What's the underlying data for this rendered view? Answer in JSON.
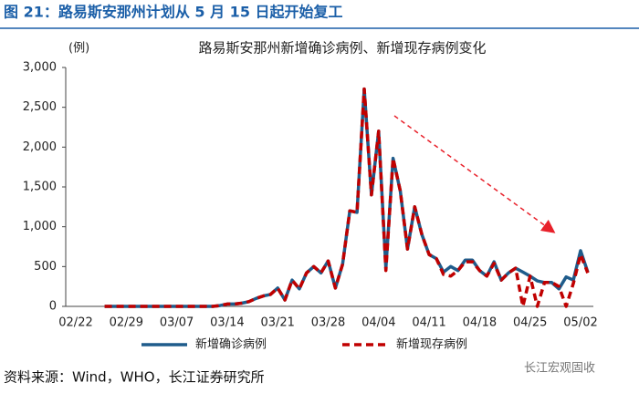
{
  "chart_data": {
    "type": "line",
    "figure_title": "图 21：路易斯安那州计划从 5 月 15 日起开始复工",
    "title": "路易斯安那州新增确诊病例、新增现存病例变化",
    "y_unit": "(例)",
    "source": "资料来源：Wind，WHO，长江证券研究所",
    "watermark": "长江宏观固收",
    "categories": [
      "02/22",
      null,
      null,
      null,
      null,
      null,
      null,
      "02/29",
      null,
      null,
      null,
      null,
      null,
      null,
      "03/07",
      null,
      null,
      null,
      null,
      null,
      null,
      "03/14",
      null,
      null,
      null,
      null,
      null,
      null,
      "03/21",
      null,
      null,
      null,
      null,
      null,
      null,
      "03/28",
      null,
      null,
      null,
      null,
      null,
      null,
      "04/04",
      null,
      null,
      null,
      null,
      null,
      null,
      "04/11",
      null,
      null,
      null,
      null,
      null,
      null,
      "04/18",
      null,
      null,
      null,
      null,
      null,
      null,
      "04/25",
      null,
      null,
      null,
      null,
      null,
      null,
      "05/02",
      null
    ],
    "series": [
      {
        "name": "新增确诊病例",
        "color": "#1f5c8b",
        "dashed": false,
        "values": [
          null,
          null,
          null,
          null,
          0,
          0,
          0,
          0,
          0,
          0,
          0,
          0,
          0,
          0,
          0,
          0,
          0,
          0,
          0,
          0,
          10,
          30,
          30,
          40,
          60,
          100,
          130,
          150,
          230,
          80,
          330,
          220,
          420,
          500,
          420,
          570,
          230,
          530,
          1200,
          1180,
          2730,
          1400,
          2200,
          480,
          1860,
          1450,
          720,
          1250,
          900,
          650,
          600,
          430,
          500,
          450,
          580,
          580,
          450,
          380,
          560,
          330,
          420,
          480,
          430,
          380,
          320,
          300,
          300,
          220,
          370,
          330,
          700,
          430
        ]
      },
      {
        "name": "新增现存病例",
        "color": "#c00000",
        "dashed": true,
        "values": [
          null,
          null,
          null,
          null,
          0,
          0,
          0,
          0,
          0,
          0,
          0,
          0,
          0,
          0,
          0,
          0,
          0,
          0,
          0,
          0,
          10,
          30,
          30,
          40,
          60,
          100,
          130,
          150,
          230,
          80,
          330,
          220,
          420,
          500,
          420,
          570,
          230,
          530,
          1200,
          1180,
          2730,
          1400,
          2200,
          450,
          1860,
          1450,
          720,
          1250,
          900,
          650,
          600,
          400,
          380,
          450,
          560,
          560,
          450,
          380,
          540,
          330,
          420,
          480,
          0,
          380,
          0,
          300,
          300,
          250,
          0,
          290,
          650,
          420
        ]
      }
    ],
    "ylim": [
      0,
      3000
    ],
    "yticks": [
      0,
      {
        "value": 500,
        "label": "500"
      },
      {
        "value": 1000,
        "label": "1,000"
      },
      {
        "value": 1500,
        "label": "1,500"
      },
      {
        "value": 2000,
        "label": "2,000"
      },
      {
        "value": 2500,
        "label": "2,500"
      },
      {
        "value": 3000,
        "label": "3,000"
      }
    ],
    "grid": false
  }
}
